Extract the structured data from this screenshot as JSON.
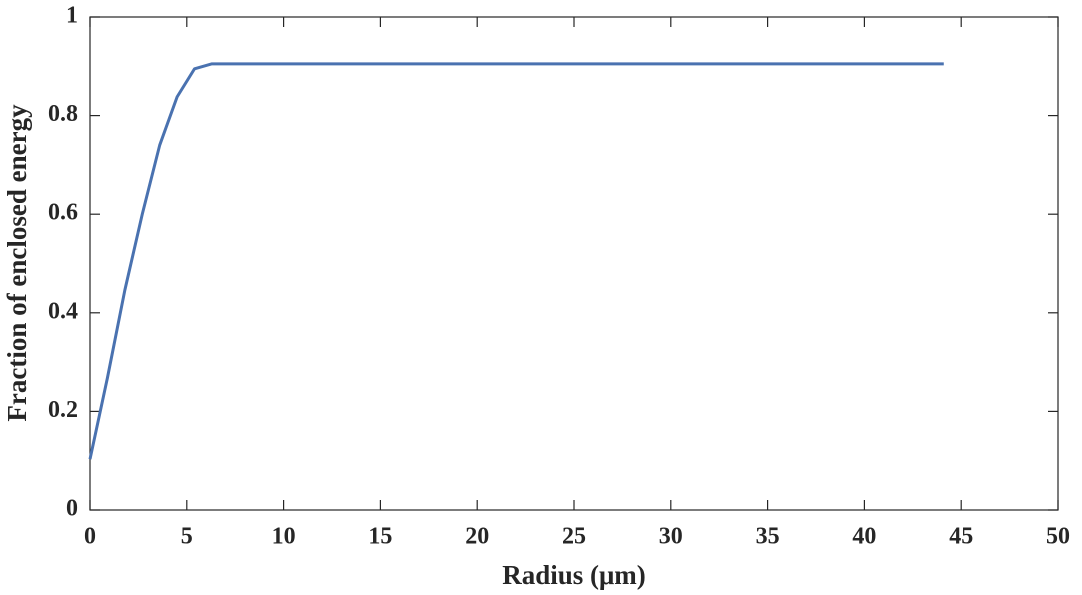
{
  "chart_data": {
    "type": "line",
    "x_label": "Radius (μm)",
    "y_label": "Fraction of enclosed energy",
    "x": [
      0,
      0.9,
      1.8,
      2.7,
      3.6,
      4.5,
      5.4,
      6.3,
      44.1
    ],
    "series": [
      {
        "color": "#4a72b0",
        "values": [
          0.103,
          0.268,
          0.446,
          0.6,
          0.74,
          0.838,
          0.895,
          0.905,
          0.905
        ]
      }
    ],
    "xlim": [
      0,
      50
    ],
    "xticks": [
      0,
      5,
      10,
      15,
      20,
      25,
      30,
      35,
      40,
      45,
      50
    ],
    "ylim": [
      0,
      1
    ],
    "yticks": [
      0,
      0.2,
      0.4,
      0.6,
      0.8,
      1
    ],
    "grid": false
  }
}
